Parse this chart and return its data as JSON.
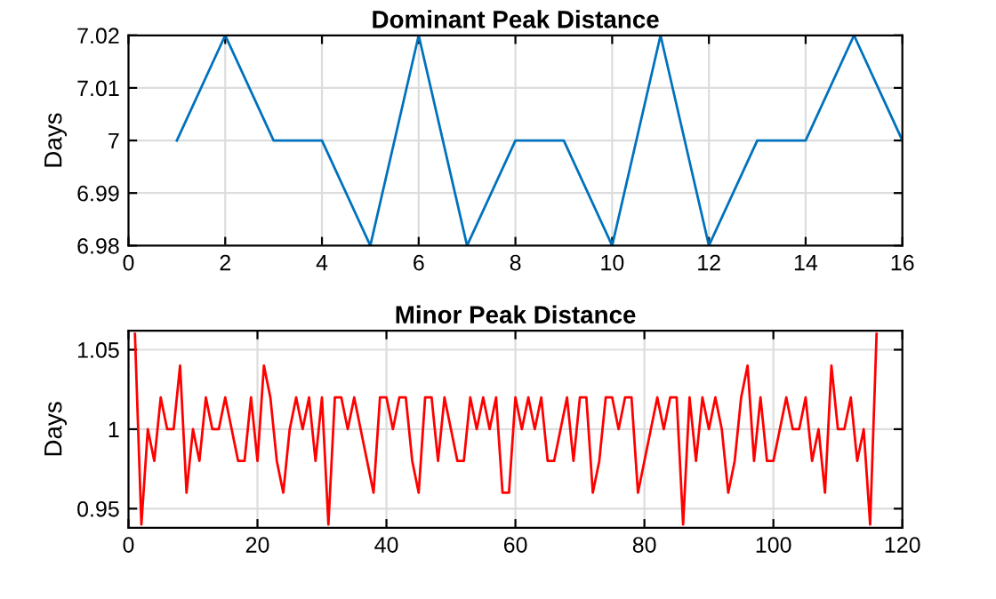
{
  "chart_data": [
    {
      "type": "line",
      "title": "Dominant Peak Distance",
      "ylabel": "Days",
      "x": [
        1,
        2,
        3,
        4,
        5,
        6,
        7,
        8,
        9,
        10,
        11,
        12,
        13,
        14,
        15,
        16
      ],
      "series": [
        {
          "color": "#0072bd",
          "values": [
            7,
            7.02,
            7,
            7,
            6.98,
            7.02,
            6.98,
            7,
            7,
            6.98,
            7.02,
            6.98,
            7,
            7,
            7.02,
            7
          ]
        }
      ],
      "xlim": [
        0,
        16
      ],
      "xticks": [
        0,
        2,
        4,
        6,
        8,
        10,
        12,
        14,
        16
      ],
      "ylim": [
        6.98,
        7.02
      ],
      "yticks": [
        6.98,
        6.99,
        7,
        7.01,
        7.02
      ],
      "grid": true,
      "legend": false
    },
    {
      "type": "line",
      "title": "Minor Peak Distance",
      "ylabel": "Days",
      "x": [
        1,
        2,
        3,
        4,
        5,
        6,
        7,
        8,
        9,
        10,
        11,
        12,
        13,
        14,
        15,
        16,
        17,
        18,
        19,
        20,
        21,
        22,
        23,
        24,
        25,
        26,
        27,
        28,
        29,
        30,
        31,
        32,
        33,
        34,
        35,
        36,
        37,
        38,
        39,
        40,
        41,
        42,
        43,
        44,
        45,
        46,
        47,
        48,
        49,
        50,
        51,
        52,
        53,
        54,
        55,
        56,
        57,
        58,
        59,
        60,
        61,
        62,
        63,
        64,
        65,
        66,
        67,
        68,
        69,
        70,
        71,
        72,
        73,
        74,
        75,
        76,
        77,
        78,
        79,
        80,
        81,
        82,
        83,
        84,
        85,
        86,
        87,
        88,
        89,
        90,
        91,
        92,
        93,
        94,
        95,
        96,
        97,
        98,
        99,
        100,
        101,
        102,
        103,
        104,
        105,
        106,
        107,
        108,
        109,
        110,
        111,
        112,
        113,
        114,
        115,
        116
      ],
      "series": [
        {
          "color": "#ff0000",
          "values": [
            1.06,
            0.94,
            1.0,
            0.98,
            1.02,
            1.0,
            1.0,
            1.04,
            0.96,
            1.0,
            0.98,
            1.02,
            1.0,
            1.0,
            1.02,
            1.0,
            0.98,
            0.98,
            1.02,
            0.98,
            1.04,
            1.02,
            0.98,
            0.96,
            1.0,
            1.02,
            1.0,
            1.02,
            0.98,
            1.02,
            0.94,
            1.02,
            1.02,
            1.0,
            1.02,
            1.0,
            0.98,
            0.96,
            1.02,
            1.02,
            1.0,
            1.02,
            1.02,
            0.98,
            0.96,
            1.02,
            1.02,
            0.98,
            1.02,
            1.0,
            0.98,
            0.98,
            1.02,
            1.0,
            1.02,
            1.0,
            1.02,
            0.96,
            0.96,
            1.02,
            1.0,
            1.02,
            1.0,
            1.02,
            0.98,
            0.98,
            1.0,
            1.02,
            0.98,
            1.02,
            1.02,
            0.96,
            0.98,
            1.02,
            1.02,
            1.0,
            1.02,
            1.02,
            0.96,
            0.98,
            1.0,
            1.02,
            1.0,
            1.02,
            1.02,
            0.94,
            1.02,
            0.98,
            1.02,
            1.0,
            1.02,
            1.0,
            0.96,
            0.98,
            1.02,
            1.04,
            0.98,
            1.02,
            0.98,
            0.98,
            1.0,
            1.02,
            1.0,
            1.0,
            1.02,
            0.98,
            1.0,
            0.96,
            1.04,
            1.0,
            1.0,
            1.02,
            0.98,
            1.0,
            0.94,
            1.06
          ]
        }
      ],
      "xlim": [
        0,
        120
      ],
      "xticks": [
        0,
        20,
        40,
        60,
        80,
        100,
        120
      ],
      "ylim": [
        0.938,
        1.062
      ],
      "yticks": [
        0.95,
        1,
        1.05
      ],
      "grid": true,
      "legend": false
    }
  ]
}
